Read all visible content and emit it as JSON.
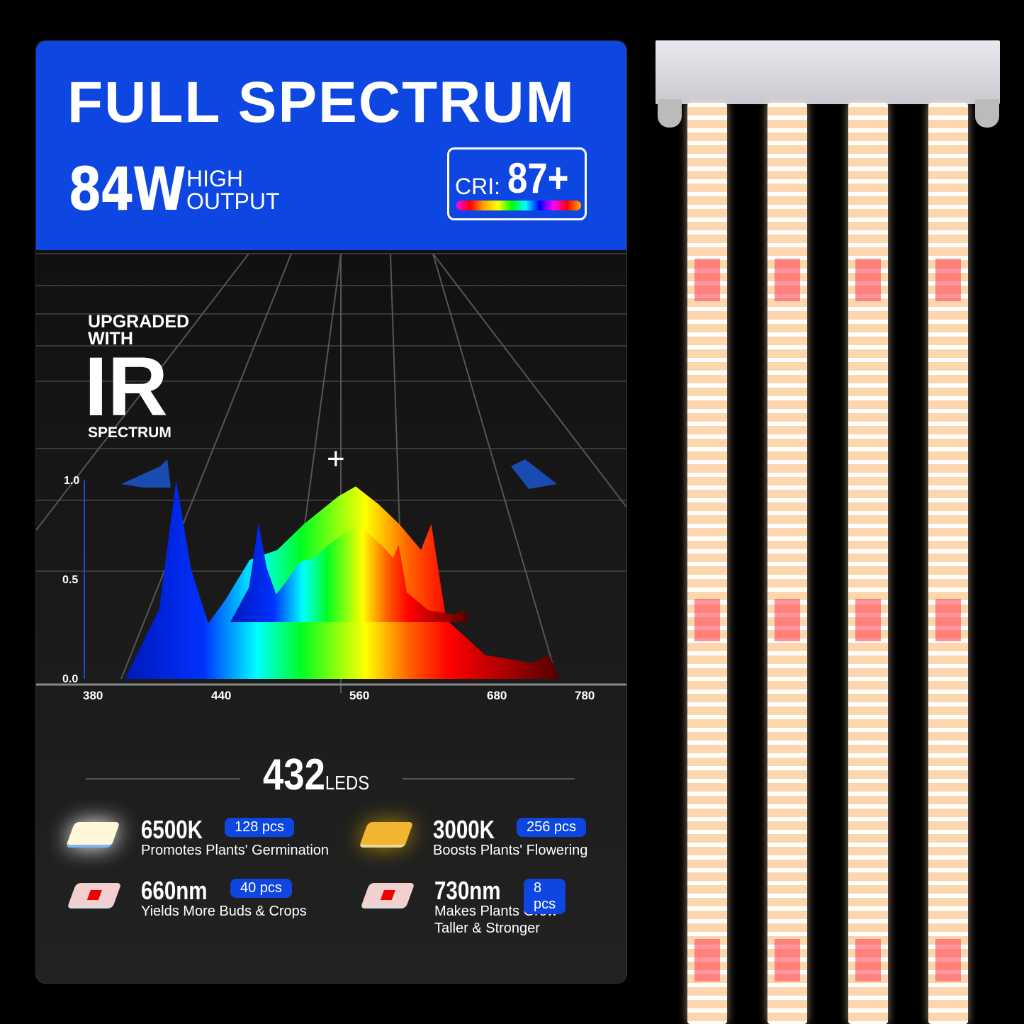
{
  "header": {
    "title": "FULL SPECTRUM",
    "wattage": "84W",
    "wattage_desc": [
      "HIGH",
      "OUTPUT"
    ],
    "cri_label": "CRI:",
    "cri_value": "87+"
  },
  "spectrum": {
    "upgrade_lines": [
      "UPGRADED",
      "WITH"
    ],
    "ir": "IR",
    "spectrum_label": "SPECTRUM",
    "plus": "+"
  },
  "chart_data": {
    "type": "area",
    "xlabel": "",
    "ylabel": "",
    "x_ticks": [
      "380",
      "440",
      "560",
      "680",
      "780"
    ],
    "y_ticks": [
      "1.0",
      "0.5",
      "0.0"
    ],
    "ylim": [
      0,
      1
    ],
    "x": [
      380,
      394,
      410,
      418,
      425,
      433,
      442,
      463,
      487,
      510,
      540,
      555,
      575,
      593,
      612,
      621,
      634,
      668,
      718,
      737,
      750,
      780
    ],
    "values": [
      0,
      0,
      0.35,
      1.0,
      0.55,
      0.28,
      0.4,
      0.6,
      0.65,
      0.78,
      0.92,
      0.97,
      0.88,
      0.78,
      0.65,
      0.78,
      0.3,
      0.12,
      0.08,
      0.12,
      0,
      0
    ]
  },
  "leds": {
    "count": "432",
    "unit": "LEDS",
    "items": [
      {
        "name": "6500K",
        "pcs": "128 pcs",
        "desc": [
          "Promotes Plants' Germination"
        ],
        "color": "#fff7d8"
      },
      {
        "name": "3000K",
        "pcs": "256 pcs",
        "desc": [
          "Boosts Plants' Flowering"
        ],
        "color": "#f2b530"
      },
      {
        "name": "660nm",
        "pcs": "40 pcs",
        "desc": [
          "Yields More Buds & Crops"
        ],
        "color": "#f3d0d0"
      },
      {
        "name": "730nm",
        "pcs": "8 pcs",
        "desc": [
          "Makes Plants Grow",
          "Taller & Stronger"
        ],
        "color": "#f3d0d0"
      }
    ]
  },
  "colors": {
    "brand_blue": "#0d46e0",
    "background": "#000000"
  }
}
